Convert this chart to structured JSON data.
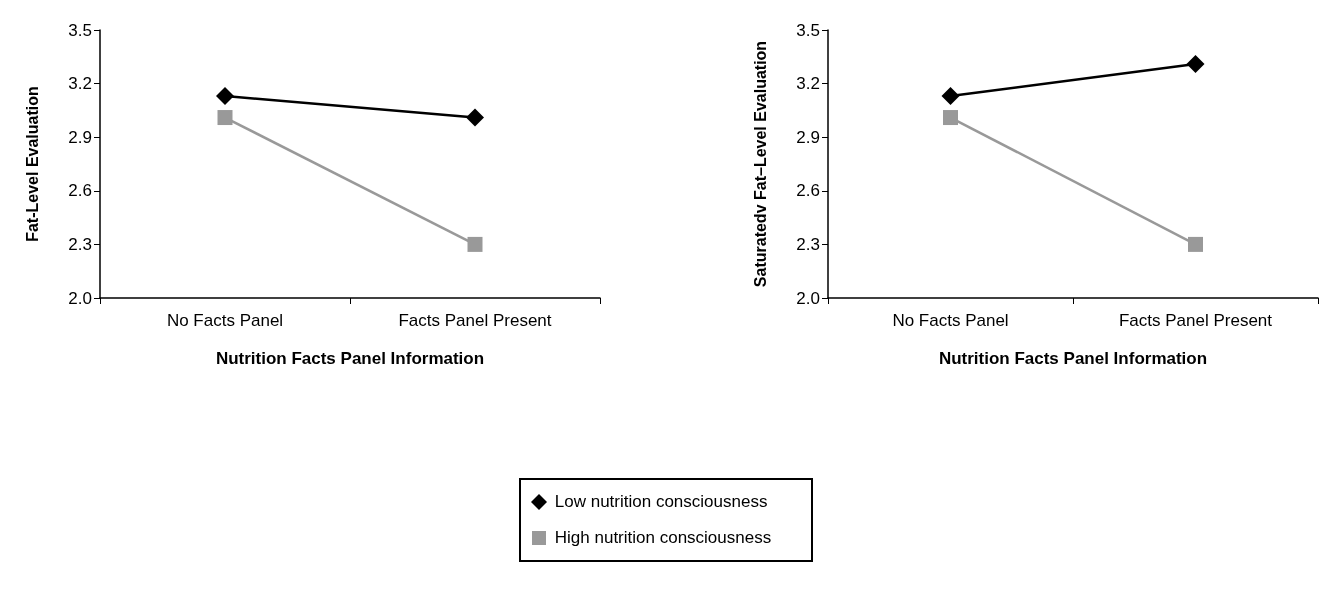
{
  "chart_data": [
    {
      "type": "line",
      "xlabel": "Nutrition Facts Panel Information",
      "ylabel": "Fat-Level Evaluation",
      "categories": [
        "No Facts Panel",
        "Facts Panel Present"
      ],
      "ylim": [
        2.0,
        3.5
      ],
      "yticks": [
        {
          "value": 2,
          "label": "2.0"
        },
        2.3,
        2.6,
        2.9,
        3.2,
        3.5
      ],
      "grid": false,
      "legend": "bottom",
      "line_style": "solid",
      "series": [
        {
          "name": "Low nutrition consciousness",
          "color": "#000000",
          "marker": "diamond",
          "values": [
            3.13,
            3.01
          ]
        },
        {
          "name": "High nutrition consciousness",
          "color": "#999999",
          "marker": "square",
          "values": [
            3.01,
            2.3
          ]
        }
      ]
    },
    {
      "type": "line",
      "xlabel": "Nutrition Facts Panel Information",
      "ylabel": "Saturatedv Fat–Level Evaluation",
      "categories": [
        "No Facts Panel",
        "Facts Panel Present"
      ],
      "ylim": [
        2.0,
        3.5
      ],
      "yticks": [
        {
          "value": 2,
          "label": "2.0"
        },
        2.3,
        2.6,
        2.9,
        3.2,
        3.5
      ],
      "grid": false,
      "line_style": "solid",
      "series": [
        {
          "color": "#000000",
          "marker": "diamond",
          "values": [
            3.13,
            3.31
          ]
        },
        {
          "color": "#999999",
          "marker": "square",
          "values": [
            3.01,
            2.3
          ]
        }
      ]
    }
  ]
}
